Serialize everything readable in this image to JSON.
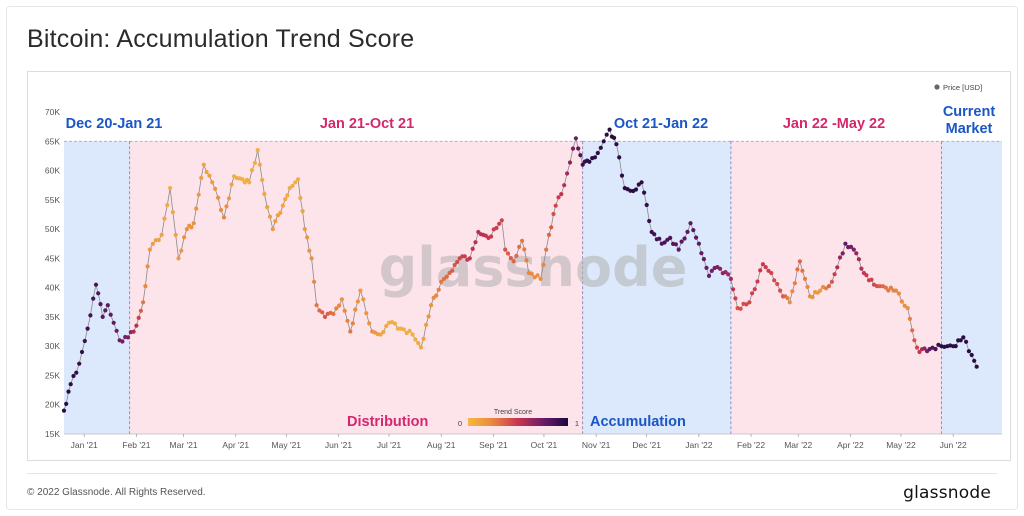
{
  "title": "Bitcoin: Accumulation Trend Score",
  "footer": {
    "copyright": "© 2022 Glassnode. All Rights Reserved.",
    "logo": "glassnode"
  },
  "watermark": "glassnode",
  "legend": {
    "label": "Price [USD]",
    "color": "#666666"
  },
  "colorbar": {
    "title": "Trend Score",
    "min_label": "0",
    "max_label": "1",
    "colors": [
      "#f4b942",
      "#e8873f",
      "#c7354f",
      "#6d1b6a",
      "#1a0a3a"
    ]
  },
  "colors": {
    "accumulation_bg": "#dce8fb",
    "distribution_bg": "#fde3ea",
    "blue_text": "#1a56c4",
    "pink_text": "#d5286c"
  },
  "periods": [
    {
      "label": "Dec 20-Jan 21",
      "type": "accumulation",
      "start": "2020-12-20",
      "end": "2021-01-28"
    },
    {
      "label": "Jan 21-Oct 21",
      "type": "distribution",
      "start": "2021-01-28",
      "end": "2021-10-24"
    },
    {
      "label": "Oct 21-Jan 22",
      "type": "accumulation",
      "start": "2021-10-24",
      "end": "2022-01-20"
    },
    {
      "label": "Jan 22 -May 22",
      "type": "distribution",
      "start": "2022-01-20",
      "end": "2022-05-25"
    },
    {
      "label": "Current Market",
      "type": "accumulation",
      "start": "2022-05-25",
      "end": "2022-06-30"
    }
  ],
  "annotations": {
    "distribution": "Distribution",
    "accumulation": "Accumulation"
  },
  "chart_data": {
    "type": "scatter",
    "title": "Bitcoin: Accumulation Trend Score",
    "xlabel": "",
    "ylabel": "",
    "ylim": [
      15000,
      70000
    ],
    "xlim": [
      "2020-12-20",
      "2022-06-30"
    ],
    "y_ticks": [
      "15K",
      "20K",
      "25K",
      "30K",
      "35K",
      "40K",
      "45K",
      "50K",
      "55K",
      "60K",
      "65K",
      "70K"
    ],
    "x_ticks": [
      {
        "label": "Jan '21",
        "date": "2021-01-01"
      },
      {
        "label": "Feb '21",
        "date": "2021-02-01"
      },
      {
        "label": "Mar '21",
        "date": "2021-03-01"
      },
      {
        "label": "Apr '21",
        "date": "2021-04-01"
      },
      {
        "label": "May '21",
        "date": "2021-05-01"
      },
      {
        "label": "Jun '21",
        "date": "2021-06-01"
      },
      {
        "label": "Jul '21",
        "date": "2021-07-01"
      },
      {
        "label": "Aug '21",
        "date": "2021-08-01"
      },
      {
        "label": "Sep '21",
        "date": "2021-09-01"
      },
      {
        "label": "Oct '21",
        "date": "2021-10-01"
      },
      {
        "label": "Nov '21",
        "date": "2021-11-01"
      },
      {
        "label": "Dec '21",
        "date": "2021-12-01"
      },
      {
        "label": "Jan '22",
        "date": "2022-01-01"
      },
      {
        "label": "Feb '22",
        "date": "2022-02-01"
      },
      {
        "label": "Mar '22",
        "date": "2022-03-01"
      },
      {
        "label": "Apr '22",
        "date": "2022-04-01"
      },
      {
        "label": "May '22",
        "date": "2022-05-01"
      },
      {
        "label": "Jun '22",
        "date": "2022-06-01"
      }
    ],
    "series": [
      {
        "name": "Price [USD]",
        "points": [
          [
            "2020-12-20",
            19000,
            0.95
          ],
          [
            "2020-12-24",
            23500,
            0.95
          ],
          [
            "2020-12-29",
            27000,
            0.93
          ],
          [
            "2021-01-03",
            33000,
            0.9
          ],
          [
            "2021-01-08",
            40500,
            0.85
          ],
          [
            "2021-01-12",
            35000,
            0.8
          ],
          [
            "2021-01-15",
            37000,
            0.8
          ],
          [
            "2021-01-22",
            31000,
            0.75
          ],
          [
            "2021-01-27",
            31500,
            0.7
          ],
          [
            "2021-02-01",
            33500,
            0.55
          ],
          [
            "2021-02-05",
            37500,
            0.3
          ],
          [
            "2021-02-09",
            46500,
            0.15
          ],
          [
            "2021-02-16",
            49000,
            0.1
          ],
          [
            "2021-02-21",
            57000,
            0.05
          ],
          [
            "2021-02-26",
            45000,
            0.15
          ],
          [
            "2021-03-03",
            50000,
            0.2
          ],
          [
            "2021-03-07",
            51000,
            0.2
          ],
          [
            "2021-03-13",
            61000,
            0.1
          ],
          [
            "2021-03-18",
            58000,
            0.15
          ],
          [
            "2021-03-25",
            52000,
            0.25
          ],
          [
            "2021-03-31",
            59000,
            0.05
          ],
          [
            "2021-04-05",
            58500,
            0.05
          ],
          [
            "2021-04-09",
            58000,
            0.05
          ],
          [
            "2021-04-14",
            63500,
            0.05
          ],
          [
            "2021-04-18",
            56000,
            0.1
          ],
          [
            "2021-04-23",
            50000,
            0.15
          ],
          [
            "2021-04-29",
            54000,
            0.1
          ],
          [
            "2021-05-03",
            57000,
            0.05
          ],
          [
            "2021-05-08",
            58500,
            0.05
          ],
          [
            "2021-05-12",
            50000,
            0.15
          ],
          [
            "2021-05-16",
            45000,
            0.2
          ],
          [
            "2021-05-19",
            37000,
            0.3
          ],
          [
            "2021-05-24",
            35000,
            0.4
          ],
          [
            "2021-05-29",
            35500,
            0.3
          ],
          [
            "2021-06-03",
            38000,
            0.2
          ],
          [
            "2021-06-08",
            32500,
            0.3
          ],
          [
            "2021-06-14",
            39500,
            0.15
          ],
          [
            "2021-06-21",
            32500,
            0.2
          ],
          [
            "2021-06-26",
            32000,
            0.1
          ],
          [
            "2021-07-01",
            34000,
            0.05
          ],
          [
            "2021-07-08",
            33000,
            0.05
          ],
          [
            "2021-07-15",
            32000,
            0.05
          ],
          [
            "2021-07-20",
            29800,
            0.08
          ],
          [
            "2021-07-26",
            37000,
            0.2
          ],
          [
            "2021-08-01",
            41000,
            0.3
          ],
          [
            "2021-08-06",
            42500,
            0.35
          ],
          [
            "2021-08-12",
            45000,
            0.45
          ],
          [
            "2021-08-18",
            45000,
            0.5
          ],
          [
            "2021-08-23",
            49500,
            0.55
          ],
          [
            "2021-08-29",
            48500,
            0.5
          ],
          [
            "2021-09-06",
            51500,
            0.45
          ],
          [
            "2021-09-08",
            46500,
            0.4
          ],
          [
            "2021-09-13",
            44500,
            0.35
          ],
          [
            "2021-09-18",
            48000,
            0.3
          ],
          [
            "2021-09-22",
            42500,
            0.25
          ],
          [
            "2021-09-29",
            41500,
            0.2
          ],
          [
            "2021-10-04",
            49000,
            0.35
          ],
          [
            "2021-10-08",
            54000,
            0.45
          ],
          [
            "2021-10-13",
            57500,
            0.55
          ],
          [
            "2021-10-20",
            65500,
            0.75
          ],
          [
            "2021-10-24",
            61000,
            0.9
          ],
          [
            "2021-10-28",
            61500,
            0.95
          ],
          [
            "2021-11-02",
            63000,
            0.95
          ],
          [
            "2021-11-09",
            67000,
            0.95
          ],
          [
            "2021-11-13",
            64500,
            0.95
          ],
          [
            "2021-11-18",
            57000,
            0.95
          ],
          [
            "2021-11-23",
            56500,
            0.95
          ],
          [
            "2021-11-28",
            58000,
            0.95
          ],
          [
            "2021-12-04",
            49500,
            0.9
          ],
          [
            "2021-12-10",
            47500,
            0.85
          ],
          [
            "2021-12-15",
            48500,
            0.85
          ],
          [
            "2021-12-20",
            46500,
            0.8
          ],
          [
            "2021-12-27",
            51000,
            0.8
          ],
          [
            "2022-01-01",
            47500,
            0.8
          ],
          [
            "2022-01-07",
            42000,
            0.75
          ],
          [
            "2022-01-12",
            43500,
            0.7
          ],
          [
            "2022-01-20",
            41500,
            0.6
          ],
          [
            "2022-01-24",
            36500,
            0.4
          ],
          [
            "2022-01-31",
            37500,
            0.45
          ],
          [
            "2022-02-08",
            44000,
            0.5
          ],
          [
            "2022-02-13",
            42500,
            0.45
          ],
          [
            "2022-02-20",
            38500,
            0.4
          ],
          [
            "2022-02-24",
            37500,
            0.2
          ],
          [
            "2022-03-02",
            44500,
            0.35
          ],
          [
            "2022-03-08",
            38500,
            0.2
          ],
          [
            "2022-03-14",
            39500,
            0.15
          ],
          [
            "2022-03-21",
            41000,
            0.4
          ],
          [
            "2022-03-29",
            47500,
            0.8
          ],
          [
            "2022-04-03",
            46500,
            0.7
          ],
          [
            "2022-04-09",
            42500,
            0.5
          ],
          [
            "2022-04-15",
            40500,
            0.45
          ],
          [
            "2022-04-22",
            40000,
            0.3
          ],
          [
            "2022-04-28",
            39500,
            0.25
          ],
          [
            "2022-05-05",
            36500,
            0.2
          ],
          [
            "2022-05-09",
            31000,
            0.4
          ],
          [
            "2022-05-12",
            29000,
            0.5
          ],
          [
            "2022-05-18",
            29500,
            0.8
          ],
          [
            "2022-05-25",
            30000,
            0.95
          ],
          [
            "2022-06-01",
            30000,
            0.95
          ],
          [
            "2022-06-07",
            31500,
            0.95
          ],
          [
            "2022-06-12",
            28500,
            0.95
          ],
          [
            "2022-06-15",
            26500,
            0.95
          ]
        ]
      }
    ]
  }
}
